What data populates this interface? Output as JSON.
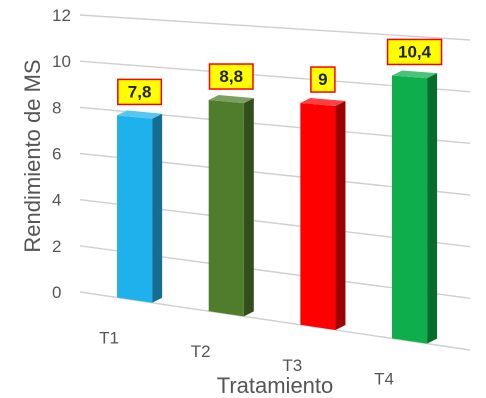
{
  "chart_data": {
    "type": "bar",
    "categories": [
      "T1",
      "T2",
      "T3",
      "T4"
    ],
    "values": [
      7.8,
      8.8,
      9,
      10.4
    ],
    "data_labels": [
      "7,8",
      "8,8",
      "9",
      "10,4"
    ],
    "title": "",
    "xlabel": "Tratamiento",
    "ylabel": "Rendimiento de MS",
    "ylim": [
      0,
      12
    ],
    "yticks": [
      "0",
      "2",
      "4",
      "6",
      "8",
      "10",
      "12"
    ],
    "grid": true,
    "legend": "none",
    "style": "3d-column",
    "colors": {
      "T1": "#1fb1ec",
      "T2": "#4f7d2c",
      "T3": "#ff0000",
      "T4": "#0fae4c"
    },
    "label_box": {
      "fill": "#ffff00",
      "border": "#ff0000"
    },
    "grid_color": "#cfcfcf"
  }
}
